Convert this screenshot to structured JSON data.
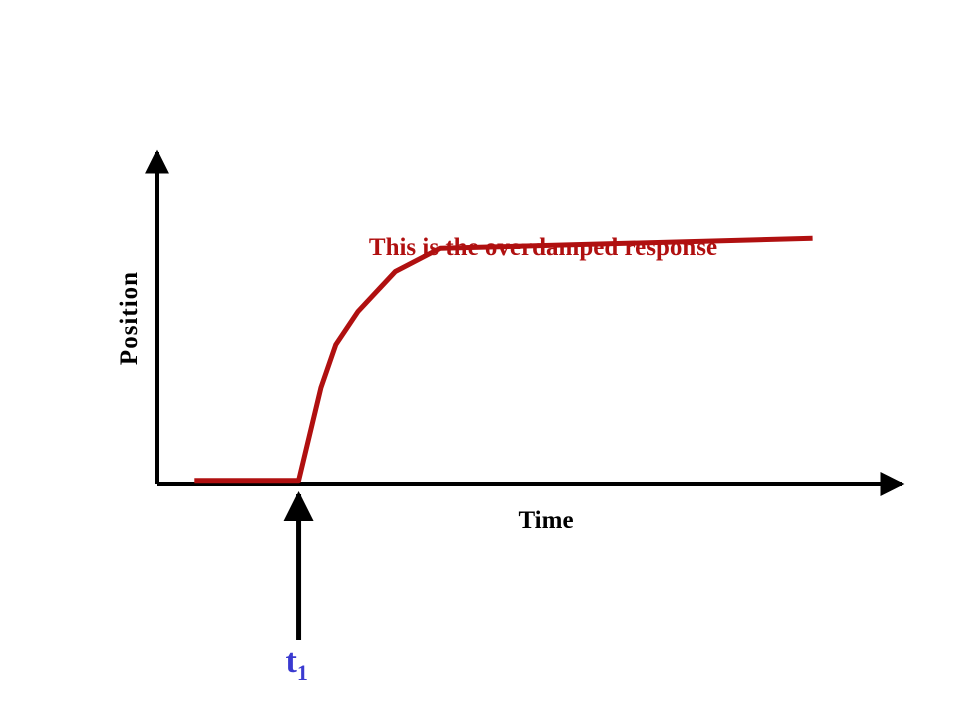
{
  "chart_data": {
    "type": "line",
    "xlabel": "Time",
    "ylabel": "Position",
    "annotation": "This is the overdamped response",
    "marker": {
      "label": "t",
      "subscript": "1",
      "x": 0.19
    },
    "series": [
      {
        "x": [
          0.05,
          0.19,
          0.22,
          0.24,
          0.27,
          0.32,
          0.38,
          0.88
        ],
        "values": [
          0.01,
          0.01,
          0.29,
          0.42,
          0.52,
          0.64,
          0.71,
          0.74
        ]
      }
    ],
    "xlim": [
      0,
      1
    ],
    "ylim": [
      0,
      1
    ],
    "grid": false
  },
  "colors": {
    "axis": "#000000",
    "line": "#b01010",
    "annotation": "#b01010",
    "marker_label": "#3a3ad0",
    "marker_arrow": "#000000"
  }
}
